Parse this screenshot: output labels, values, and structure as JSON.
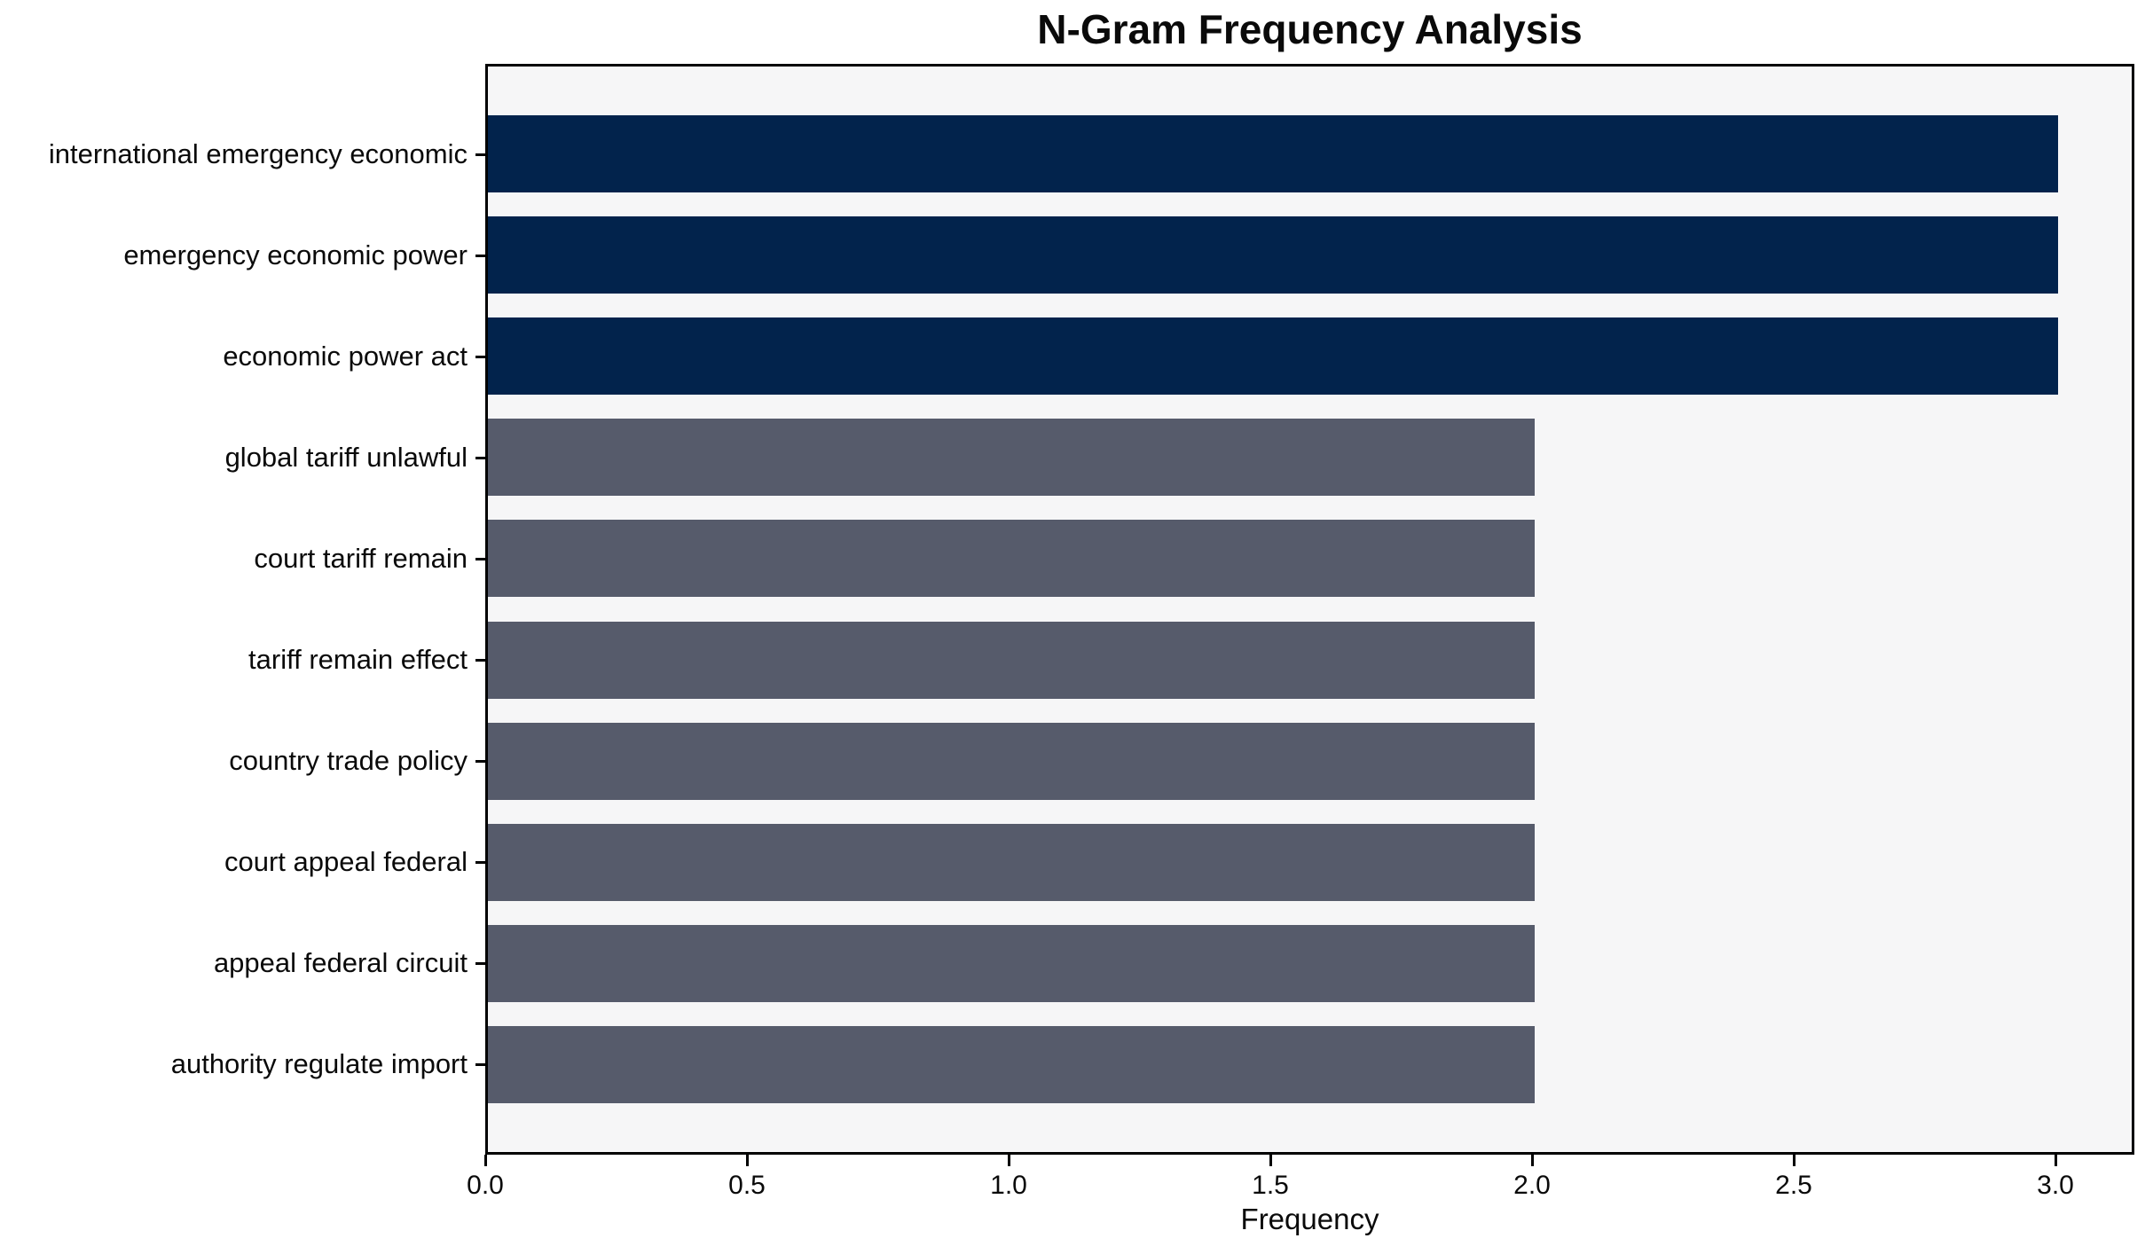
{
  "chart_data": {
    "type": "bar",
    "orientation": "horizontal",
    "title": "N-Gram Frequency Analysis",
    "xlabel": "Frequency",
    "ylabel": "",
    "categories": [
      "international emergency economic",
      "emergency economic power",
      "economic power act",
      "global tariff unlawful",
      "court tariff remain",
      "tariff remain effect",
      "country trade policy",
      "court appeal federal",
      "appeal federal circuit",
      "authority regulate import"
    ],
    "values": [
      3,
      3,
      3,
      2,
      2,
      2,
      2,
      2,
      2,
      2
    ],
    "bar_colors": [
      "#02234c",
      "#02234c",
      "#02234c",
      "#565b6b",
      "#565b6b",
      "#565b6b",
      "#565b6b",
      "#565b6b",
      "#565b6b",
      "#565b6b"
    ],
    "xlim": [
      0,
      3.15
    ],
    "xtick_values": [
      0,
      0.5,
      1.0,
      1.5,
      2.0,
      2.5,
      3.0
    ],
    "xtick_labels": [
      "0.0",
      "0.5",
      "1.0",
      "1.5",
      "2.0",
      "2.5",
      "3.0"
    ],
    "grid": false,
    "legend": null,
    "colors": {
      "high_frequency_bar": "#02234c",
      "low_frequency_bar": "#565b6b",
      "plot_background": "#f6f6f7",
      "figure_background": "#ffffff",
      "frame": "#000000",
      "text": "#0a0a0a"
    }
  }
}
